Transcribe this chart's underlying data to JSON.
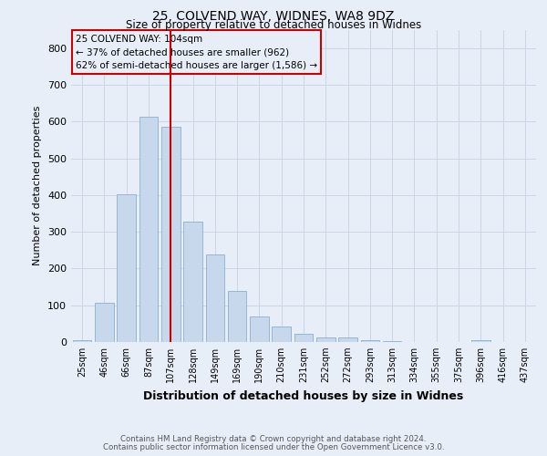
{
  "title1": "25, COLVEND WAY, WIDNES, WA8 9DZ",
  "title2": "Size of property relative to detached houses in Widnes",
  "xlabel": "Distribution of detached houses by size in Widnes",
  "ylabel": "Number of detached properties",
  "footnote1": "Contains HM Land Registry data © Crown copyright and database right 2024.",
  "footnote2": "Contains public sector information licensed under the Open Government Licence v3.0.",
  "categories": [
    "25sqm",
    "46sqm",
    "66sqm",
    "87sqm",
    "107sqm",
    "128sqm",
    "149sqm",
    "169sqm",
    "190sqm",
    "210sqm",
    "231sqm",
    "252sqm",
    "272sqm",
    "293sqm",
    "313sqm",
    "334sqm",
    "355sqm",
    "375sqm",
    "396sqm",
    "416sqm",
    "437sqm"
  ],
  "values": [
    5,
    107,
    403,
    612,
    585,
    328,
    238,
    138,
    70,
    43,
    22,
    13,
    12,
    5,
    3,
    1,
    0,
    0,
    6,
    0,
    0
  ],
  "bar_color": "#c8d8ec",
  "bar_edge_color": "#8ab0d0",
  "highlight_bar": "107sqm",
  "highlight_color": "#cc0000",
  "annotation_line1": "25 COLVEND WAY: 104sqm",
  "annotation_line2": "← 37% of detached houses are smaller (962)",
  "annotation_line3": "62% of semi-detached houses are larger (1,586) →",
  "annotation_box_color": "#cc0000",
  "ylim": [
    0,
    850
  ],
  "yticks": [
    0,
    100,
    200,
    300,
    400,
    500,
    600,
    700,
    800
  ],
  "grid_color": "#ccd5e5",
  "bg_color": "#e8eef8"
}
